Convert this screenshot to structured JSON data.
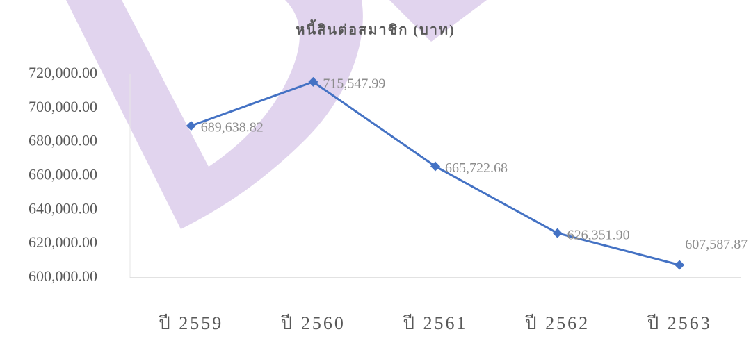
{
  "chart_data": {
    "type": "line",
    "title": "หนี้สินต่อสมาชิก (บาท)",
    "categories": [
      "ปี 2559",
      "ปี 2560",
      "ปี 2561",
      "ปี 2562",
      "ปี 2563"
    ],
    "series": [
      {
        "name": "หนี้สินต่อสมาชิก",
        "color": "#4472c4",
        "values": [
          689638.82,
          715547.99,
          665722.68,
          626351.9,
          607587.87
        ],
        "value_labels": [
          "689,638.82",
          "715,547.99",
          "665,722.68",
          "626,351.90",
          "607,587.87"
        ]
      }
    ],
    "ylim": [
      600000,
      720000
    ],
    "yticks": [
      {
        "value": 600000,
        "label": "600,000.00"
      },
      {
        "value": 620000,
        "label": "620,000.00"
      },
      {
        "value": 640000,
        "label": "640,000.00"
      },
      {
        "value": 660000,
        "label": "660,000.00"
      },
      {
        "value": 680000,
        "label": "680,000.00"
      },
      {
        "value": 700000,
        "label": "700,000.00"
      },
      {
        "value": 720000,
        "label": "720,000.00"
      }
    ],
    "grid": false
  }
}
